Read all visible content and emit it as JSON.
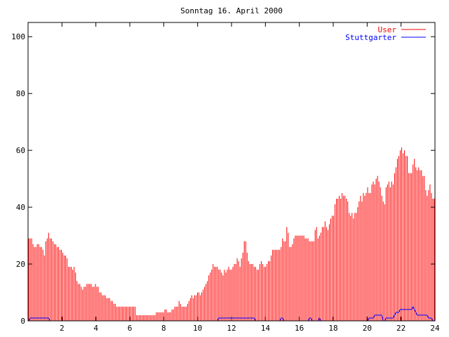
{
  "chart_data": {
    "type": "bar",
    "title": "Sonntag 16. April 2000",
    "xlabel": "",
    "ylabel": "",
    "xlim": [
      0,
      24
    ],
    "ylim": [
      0,
      105
    ],
    "x_ticks": [
      2,
      4,
      6,
      8,
      10,
      12,
      14,
      16,
      18,
      20,
      22,
      24
    ],
    "y_ticks": [
      0,
      20,
      40,
      60,
      80,
      100
    ],
    "grid": false,
    "legend_position": "top-right",
    "series": [
      {
        "name": "User",
        "color": "#ff0000",
        "style": "impulses",
        "values": [
          29,
          29,
          29,
          27,
          26,
          26,
          27,
          27,
          26,
          26,
          25,
          23,
          28,
          29,
          31,
          29,
          29,
          28,
          27,
          27,
          26,
          26,
          25,
          25,
          24,
          23,
          23,
          22,
          19,
          19,
          19,
          18,
          19,
          17,
          14,
          13,
          13,
          12,
          11,
          12,
          12,
          13,
          13,
          13,
          13,
          12,
          12,
          13,
          12,
          12,
          10,
          10,
          9,
          9,
          9,
          8,
          8,
          8,
          7,
          7,
          6,
          6,
          5,
          5,
          5,
          5,
          5,
          5,
          5,
          5,
          5,
          5,
          5,
          5,
          5,
          5,
          2,
          2,
          2,
          2,
          2,
          2,
          2,
          2,
          2,
          2,
          2,
          2,
          2,
          2,
          3,
          3,
          3,
          3,
          3,
          3,
          4,
          4,
          3,
          3,
          3,
          4,
          4,
          5,
          5,
          5,
          7,
          6,
          5,
          5,
          5,
          5,
          6,
          7,
          8,
          9,
          8,
          9,
          9,
          10,
          10,
          9,
          10,
          11,
          12,
          13,
          14,
          16,
          17,
          18,
          20,
          19,
          19,
          19,
          18,
          18,
          17,
          16,
          18,
          17,
          18,
          19,
          18,
          18,
          19,
          20,
          20,
          22,
          21,
          19,
          22,
          24,
          28,
          28,
          24,
          21,
          20,
          20,
          20,
          19,
          19,
          18,
          18,
          20,
          21,
          20,
          19,
          19,
          20,
          21,
          21,
          23,
          25,
          25,
          25,
          25,
          25,
          25,
          26,
          29,
          28,
          28,
          33,
          31,
          26,
          26,
          27,
          29,
          30,
          30,
          30,
          30,
          30,
          30,
          30,
          29,
          29,
          29,
          28,
          28,
          28,
          28,
          32,
          33,
          29,
          30,
          31,
          33,
          33,
          35,
          33,
          32,
          34,
          36,
          37,
          37,
          41,
          43,
          43,
          44,
          43,
          45,
          44,
          44,
          43,
          42,
          38,
          37,
          38,
          36,
          38,
          38,
          40,
          42,
          44,
          42,
          45,
          44,
          45,
          47,
          45,
          45,
          48,
          49,
          48,
          50,
          51,
          49,
          47,
          44,
          42,
          41,
          47,
          48,
          49,
          47,
          49,
          48,
          52,
          54,
          57,
          58,
          60,
          61,
          59,
          60,
          58,
          58,
          52,
          52,
          52,
          55,
          57,
          54,
          53,
          54,
          53,
          53,
          51,
          51,
          46,
          44,
          46,
          48,
          45,
          43,
          43
        ]
      },
      {
        "name": "Stuttgarter",
        "color": "#0000ff",
        "style": "line",
        "values": [
          0,
          1,
          1,
          1,
          1,
          1,
          1,
          1,
          1,
          1,
          1,
          1,
          1,
          1,
          1,
          0,
          0,
          0,
          0,
          0,
          0,
          0,
          0,
          0,
          0,
          0,
          0,
          0,
          0,
          0,
          0,
          0,
          0,
          0,
          0,
          0,
          0,
          0,
          0,
          0,
          0,
          0,
          0,
          0,
          0,
          0,
          0,
          0,
          0,
          0,
          0,
          0,
          0,
          0,
          0,
          0,
          0,
          0,
          0,
          0,
          0,
          0,
          0,
          0,
          0,
          0,
          0,
          0,
          0,
          0,
          0,
          0,
          0,
          0,
          0,
          0,
          0,
          0,
          0,
          0,
          0,
          0,
          0,
          0,
          0,
          0,
          0,
          0,
          0,
          0,
          0,
          0,
          0,
          0,
          0,
          0,
          0,
          0,
          0,
          0,
          0,
          0,
          0,
          0,
          0,
          0,
          0,
          0,
          0,
          0,
          0,
          0,
          0,
          0,
          0,
          0,
          0,
          0,
          0,
          0,
          0,
          0,
          0,
          0,
          0,
          0,
          0,
          0,
          0,
          0,
          0,
          0,
          0,
          0,
          1,
          1,
          1,
          1,
          1,
          1,
          1,
          1,
          1,
          1,
          1,
          1,
          1,
          1,
          1,
          1,
          1,
          1,
          1,
          1,
          1,
          1,
          1,
          1,
          1,
          1,
          0,
          0,
          0,
          0,
          0,
          0,
          0,
          0,
          0,
          0,
          0,
          0,
          0,
          0,
          0,
          0,
          0,
          0,
          1,
          1,
          0,
          0,
          0,
          0,
          0,
          0,
          0,
          0,
          0,
          0,
          0,
          0,
          0,
          0,
          0,
          0,
          0,
          0,
          1,
          1,
          0,
          0,
          0,
          0,
          0,
          1,
          0,
          0,
          0,
          0,
          0,
          0,
          0,
          0,
          0,
          0,
          0,
          0,
          0,
          0,
          0,
          0,
          0,
          0,
          0,
          0,
          0,
          0,
          0,
          0,
          0,
          0,
          0,
          0,
          0,
          0,
          0,
          0,
          0,
          0,
          1,
          1,
          1,
          1,
          2,
          2,
          2,
          2,
          2,
          2,
          0,
          0,
          1,
          1,
          1,
          1,
          1,
          1,
          2,
          3,
          3,
          3,
          4,
          4,
          4,
          4,
          4,
          4,
          4,
          4,
          4,
          5,
          4,
          3,
          2,
          2,
          2,
          2,
          2,
          2,
          2,
          2,
          1,
          1,
          1,
          0,
          0
        ]
      }
    ]
  }
}
